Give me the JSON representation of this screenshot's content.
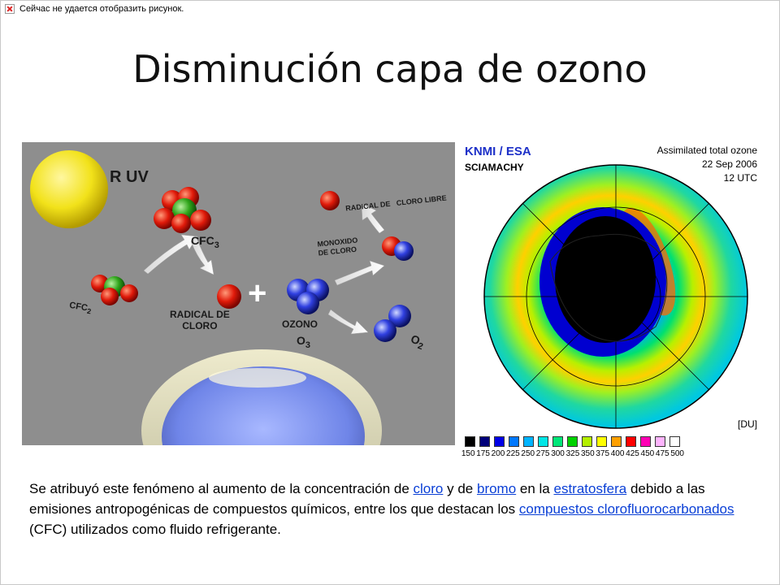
{
  "broken_image": {
    "message": "Сейчас не удается отобразить рисунок."
  },
  "slide": {
    "title": "Disminución capa de ozono"
  },
  "diagram": {
    "r_uv": "R UV",
    "cfc3": "CFC",
    "cfc3_sub": "3",
    "cfc2": "CFC",
    "cfc2_sub": "2",
    "radical_cloro_1": "RADICAL DE",
    "radical_cloro_2": "CLORO",
    "radical_libre": "RADICAL DE   CLORO LIBRE",
    "monoxido_1": "MONOXIDO",
    "monoxido_2": "DE CLORO",
    "ozono": "OZONO",
    "o3": "O",
    "o3_sub": "3",
    "o2": "O",
    "o2_sub": "2",
    "plus": "+"
  },
  "ozone_map": {
    "agency": "KNMI / ESA",
    "instrument": "SCIAMACHY",
    "product": "Assimilated total ozone",
    "date": "22 Sep 2006",
    "time": "12 UTC",
    "unit": "[DU]",
    "legend_ticks": [
      "150",
      "175",
      "200",
      "225",
      "250",
      "275",
      "300",
      "325",
      "350",
      "375",
      "400",
      "425",
      "450",
      "475",
      "500"
    ],
    "legend_colors": [
      "#000000",
      "#00007a",
      "#0000e6",
      "#0078ff",
      "#00b4ff",
      "#00e6e6",
      "#00e678",
      "#00d200",
      "#b4f000",
      "#ffff00",
      "#ffa000",
      "#ff0000",
      "#ff00b4",
      "#ffb4ff",
      "#ffffff"
    ]
  },
  "body": {
    "t1": "Se atribuyó este fenómeno al aumento de la concentración de ",
    "link_cloro": "cloro",
    "t2": " y de ",
    "link_bromo": "bromo",
    "t3": " en la ",
    "link_estratosfera": "estratosfera",
    "t4": " debido a las emisiones antropogénicas de compuestos químicos, entre los que destacan los ",
    "link_cfc": "compuestos clorofluorocarbonados",
    "t5": " (CFC) utilizados como fluido refrigerante."
  }
}
